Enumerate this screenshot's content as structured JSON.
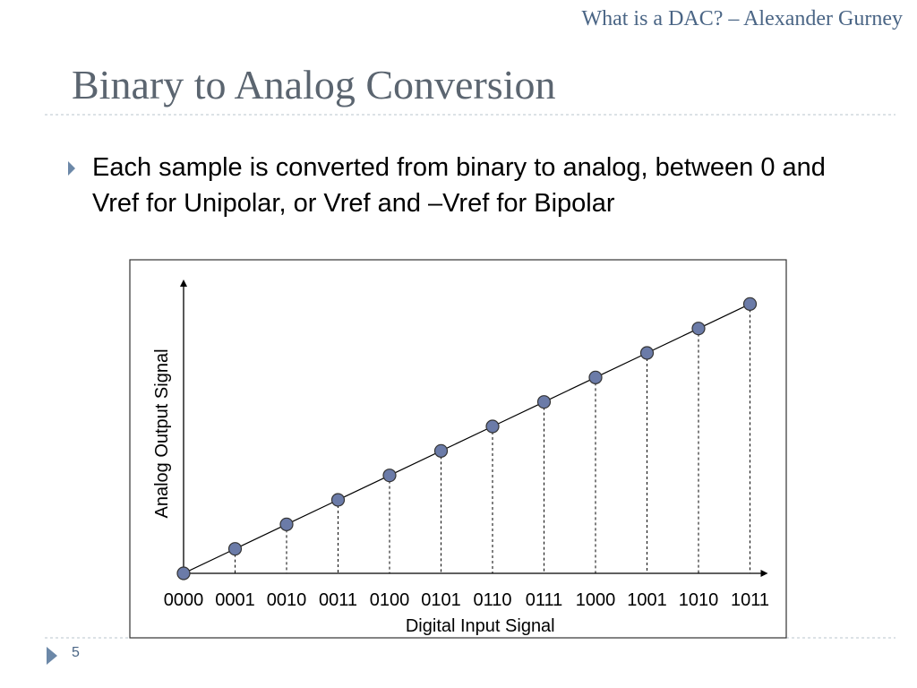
{
  "header": {
    "source": "What is a DAC? – Alexander Gurney"
  },
  "title": "Binary to Analog Conversion",
  "bullets": [
    "Each sample is converted from binary to analog, between 0 and Vref for Unipolar, or Vref and –Vref for Bipolar"
  ],
  "chart_data": {
    "type": "line",
    "x_label": "Digital Input Signal",
    "y_label": "Analog Output Signal",
    "categories": [
      "0000",
      "0001",
      "0010",
      "0011",
      "0100",
      "0101",
      "0110",
      "0111",
      "1000",
      "1001",
      "1010",
      "1011"
    ],
    "values": [
      0,
      1,
      2,
      3,
      4,
      5,
      6,
      7,
      8,
      9,
      10,
      11
    ],
    "ylim": [
      0,
      12
    ],
    "color": "#6b7ba8",
    "grid": false
  },
  "footer": {
    "page_number": 5
  }
}
